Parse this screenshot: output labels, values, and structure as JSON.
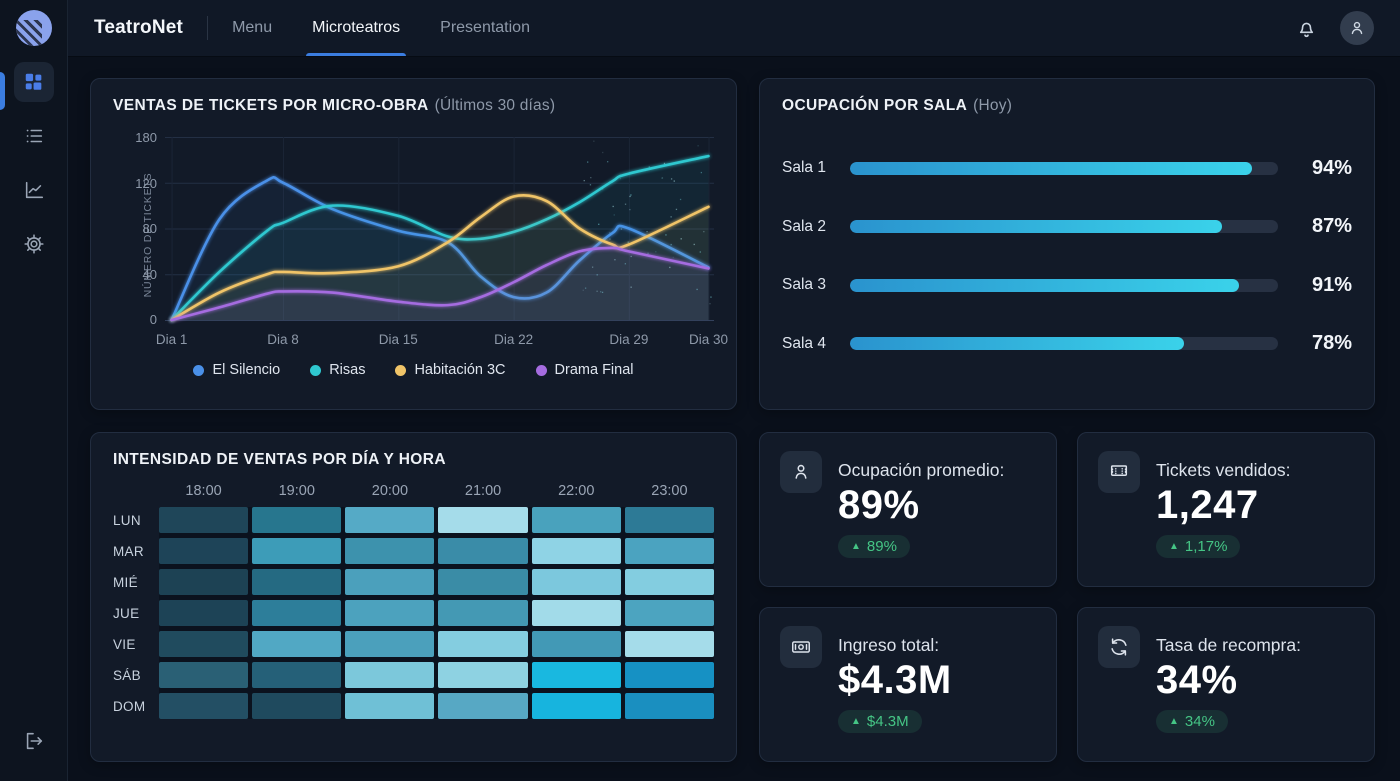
{
  "header": {
    "brand": "TeatroNet",
    "nav": [
      {
        "label": "Menu",
        "active": false
      },
      {
        "label": "Microteatros",
        "active": true
      },
      {
        "label": "Presentation",
        "active": false
      }
    ]
  },
  "colors": {
    "accent_blue": "#3b7de0",
    "sidebar_active_icon": "#4a7de8",
    "badge_green": "#45c585",
    "panel_bg": "#121a28",
    "page_bg": "#0a101b"
  },
  "icons": {
    "trend_up": "▲"
  },
  "chart_data": [
    {
      "type": "line",
      "title": "VENTAS DE TICKETS POR MICRO-OBRA",
      "subtitle": "(Últimos 30 días)",
      "ylabel": "NÚMERO DE TICKETS",
      "ylim": [
        0,
        180
      ],
      "yticks": [
        180,
        120,
        80,
        40,
        0
      ],
      "xticks": [
        "Dia 1",
        "Dia 8",
        "Dia 15",
        "Dia 22",
        "Dia 29",
        "Dia 30"
      ],
      "grid": true,
      "legend_position": "bottom",
      "x_days": [
        1,
        4,
        7,
        8,
        11,
        15,
        18,
        20,
        22,
        24,
        26,
        28,
        29,
        30
      ],
      "series": [
        {
          "name": "El Silencio",
          "color": "#4a90e8",
          "values": [
            0,
            88,
            123,
            120,
            97,
            78,
            68,
            38,
            20,
            24,
            52,
            76,
            80,
            46
          ]
        },
        {
          "name": "Risas",
          "color": "#2fc8d0",
          "values": [
            0,
            42,
            78,
            85,
            100,
            91,
            73,
            71,
            77,
            88,
            103,
            122,
            132,
            155
          ]
        },
        {
          "name": "Habitación 3C",
          "color": "#f0c468",
          "values": [
            0,
            24,
            40,
            42,
            41,
            47,
            68,
            90,
            108,
            104,
            80,
            66,
            66,
            99
          ]
        },
        {
          "name": "Drama Final",
          "color": "#a56ce0",
          "values": [
            0,
            11,
            23,
            25,
            24,
            16,
            13,
            20,
            33,
            48,
            60,
            63,
            60,
            45
          ]
        }
      ]
    },
    {
      "type": "bar",
      "title": "OCUPACIÓN POR SALA",
      "subtitle": "(Hoy)",
      "orientation": "horizontal",
      "categories": [
        "Sala 1",
        "Sala 2",
        "Sala 3",
        "Sala 4"
      ],
      "values": [
        94,
        87,
        91,
        78
      ],
      "display": [
        "94%",
        "87%",
        "91%",
        "78%"
      ],
      "xlim": [
        0,
        100
      ],
      "bar_gradient": [
        "#2a93ce",
        "#3ad2ea"
      ],
      "track_color": "#273143"
    },
    {
      "type": "heatmap",
      "title": "INTENSIDAD DE VENTAS POR DÍA Y HORA",
      "columns": [
        "18:00",
        "19:00",
        "20:00",
        "21:00",
        "22:00",
        "23:00"
      ],
      "rows": [
        "LUN",
        "MAR",
        "MIÉ",
        "JUE",
        "VIE",
        "SÁB",
        "DOM"
      ],
      "values": [
        [
          20,
          38,
          58,
          85,
          52,
          40
        ],
        [
          18,
          55,
          50,
          47,
          75,
          53
        ],
        [
          16,
          34,
          52,
          46,
          66,
          68
        ],
        [
          17,
          42,
          53,
          50,
          82,
          54
        ],
        [
          22,
          56,
          52,
          68,
          50,
          85
        ],
        [
          32,
          30,
          66,
          72,
          95,
          88
        ],
        [
          26,
          24,
          62,
          55,
          93,
          85
        ]
      ],
      "cell_colors": [
        [
          "#1f4659",
          "#27768e",
          "#55aac6",
          "#a5dcea",
          "#49a2bd",
          "#2d7a96"
        ],
        [
          "#1e4458",
          "#3d9cb8",
          "#3d92ad",
          "#3a8ca8",
          "#8fd3e5",
          "#4ba3c0"
        ],
        [
          "#1d4254",
          "#256a82",
          "#4ba0bc",
          "#3a8ca6",
          "#7cc8dd",
          "#83cde0"
        ],
        [
          "#1d4356",
          "#2d7e9a",
          "#4ca2be",
          "#4499b4",
          "#a2dbe9",
          "#4ca4c0"
        ],
        [
          "#204b5e",
          "#51a8c4",
          "#4ba0bc",
          "#84cde0",
          "#4299b6",
          "#a5dcea"
        ],
        [
          "#2a6075",
          "#256078",
          "#7cc8db",
          "#8ed2e2",
          "#19b8e0",
          "#1691c4"
        ],
        [
          "#234f64",
          "#1f4a5e",
          "#6fc0d6",
          "#57a8c4",
          "#17b4de",
          "#1a8fc0"
        ]
      ]
    }
  ],
  "stats": [
    {
      "icon": "person-icon",
      "label": "Ocupación promedio:",
      "value": "89%",
      "delta": "89%"
    },
    {
      "icon": "ticket-icon",
      "label": "Tickets vendidos:",
      "value": "1,247",
      "delta": "1,17%"
    },
    {
      "icon": "banknote-icon",
      "label": "Ingreso total:",
      "value": "$4.3M",
      "delta": "$4.3M"
    },
    {
      "icon": "refresh-icon",
      "label": "Tasa de recompra:",
      "value": "34%",
      "delta": "34%"
    }
  ]
}
